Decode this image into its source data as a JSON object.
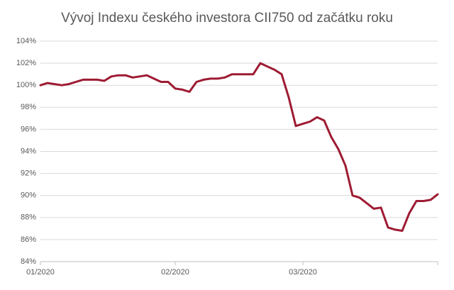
{
  "chart_data": {
    "type": "line",
    "title": "Vývoj Indexu českého investora CII750 od začátku roku",
    "categories": [
      "01/2020",
      null,
      null,
      null,
      null,
      null,
      null,
      null,
      null,
      null,
      null,
      null,
      null,
      null,
      null,
      null,
      null,
      null,
      null,
      "02/2020",
      null,
      null,
      null,
      null,
      null,
      null,
      null,
      null,
      null,
      null,
      null,
      null,
      null,
      null,
      null,
      null,
      null,
      "03/2020",
      null,
      null,
      null,
      null,
      null,
      null,
      null,
      null,
      null,
      null,
      null,
      null,
      null,
      null,
      null,
      null,
      null,
      null,
      null
    ],
    "values": [
      100.0,
      100.2,
      100.1,
      100.0,
      100.1,
      100.3,
      100.5,
      100.5,
      100.5,
      100.4,
      100.8,
      100.9,
      100.9,
      100.7,
      100.8,
      100.9,
      100.6,
      100.3,
      100.3,
      99.7,
      99.6,
      99.4,
      100.3,
      100.5,
      100.6,
      100.6,
      100.7,
      101.0,
      101.0,
      101.0,
      101.0,
      102.0,
      101.7,
      101.4,
      101.0,
      98.9,
      96.3,
      96.5,
      96.7,
      97.1,
      96.8,
      95.3,
      94.2,
      92.7,
      90.0,
      89.8,
      89.3,
      88.8,
      88.9,
      87.1,
      86.9,
      86.8,
      88.4,
      89.5,
      89.5,
      89.6,
      90.1
    ],
    "color": "#9e1b32",
    "ylim": [
      84,
      104
    ],
    "yticks": [
      {
        "value": 84,
        "label": "84%"
      },
      {
        "value": 86,
        "label": "86%"
      },
      {
        "value": 88,
        "label": "88%"
      },
      {
        "value": 90,
        "label": "90%"
      },
      {
        "value": 92,
        "label": "92%"
      },
      {
        "value": 94,
        "label": "94%"
      },
      {
        "value": 96,
        "label": "96%"
      },
      {
        "value": 98,
        "label": "98%"
      },
      {
        "value": 100,
        "label": "100%"
      },
      {
        "value": 102,
        "label": "102%"
      },
      {
        "value": 104,
        "label": "104%"
      }
    ],
    "grid": true
  }
}
